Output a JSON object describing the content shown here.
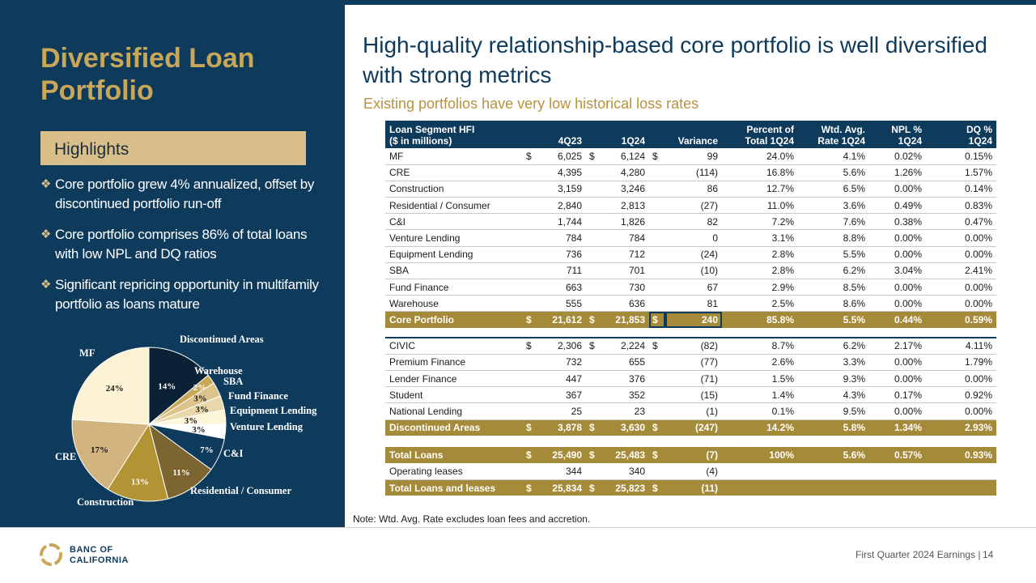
{
  "left": {
    "title": "Diversified Loan Portfolio",
    "highlights_label": "Highlights",
    "bullets": [
      "Core portfolio grew 4% annualized, offset by discontinued portfolio run-off",
      "Core portfolio comprises 86% of total loans with low NPL and DQ ratios",
      "Significant repricing opportunity in multifamily portfolio as loans mature"
    ]
  },
  "header": {
    "title": "High-quality relationship-based core portfolio is well diversified with strong metrics",
    "subtitle": "Existing portfolios have very low historical loss rates"
  },
  "table": {
    "headers": {
      "segment_line1": "Loan Segment HFI",
      "segment_line2": "($ in millions)",
      "q4_23": "4Q23",
      "q1_24": "1Q24",
      "variance": "Variance",
      "pct_line1": "Percent of",
      "pct_line2": "Total 1Q24",
      "rate_line1": "Wtd. Avg.",
      "rate_line2": "Rate 1Q24",
      "npl_line1": "NPL %",
      "npl_line2": "1Q24",
      "dq_line1": "DQ %",
      "dq_line2": "1Q24"
    },
    "core_rows": [
      {
        "name": "MF",
        "cur": "$",
        "q4": "6,025",
        "q1": "6,124",
        "var": "99",
        "pct": "24.0%",
        "rate": "4.1%",
        "npl": "0.02%",
        "dq": "0.15%"
      },
      {
        "name": "CRE",
        "cur": "",
        "q4": "4,395",
        "q1": "4,280",
        "var": "(114)",
        "pct": "16.8%",
        "rate": "5.6%",
        "npl": "1.26%",
        "dq": "1.57%"
      },
      {
        "name": "Construction",
        "cur": "",
        "q4": "3,159",
        "q1": "3,246",
        "var": "86",
        "pct": "12.7%",
        "rate": "6.5%",
        "npl": "0.00%",
        "dq": "0.14%"
      },
      {
        "name": "Residential / Consumer",
        "cur": "",
        "q4": "2,840",
        "q1": "2,813",
        "var": "(27)",
        "pct": "11.0%",
        "rate": "3.6%",
        "npl": "0.49%",
        "dq": "0.83%"
      },
      {
        "name": "C&I",
        "cur": "",
        "q4": "1,744",
        "q1": "1,826",
        "var": "82",
        "pct": "7.2%",
        "rate": "7.6%",
        "npl": "0.38%",
        "dq": "0.47%"
      },
      {
        "name": "Venture Lending",
        "cur": "",
        "q4": "784",
        "q1": "784",
        "var": "0",
        "pct": "3.1%",
        "rate": "8.8%",
        "npl": "0.00%",
        "dq": "0.00%"
      },
      {
        "name": "Equipment Lending",
        "cur": "",
        "q4": "736",
        "q1": "712",
        "var": "(24)",
        "pct": "2.8%",
        "rate": "5.5%",
        "npl": "0.00%",
        "dq": "0.00%"
      },
      {
        "name": "SBA",
        "cur": "",
        "q4": "711",
        "q1": "701",
        "var": "(10)",
        "pct": "2.8%",
        "rate": "6.2%",
        "npl": "3.04%",
        "dq": "2.41%"
      },
      {
        "name": "Fund Finance",
        "cur": "",
        "q4": "663",
        "q1": "730",
        "var": "67",
        "pct": "2.9%",
        "rate": "8.5%",
        "npl": "0.00%",
        "dq": "0.00%"
      },
      {
        "name": "Warehouse",
        "cur": "",
        "q4": "555",
        "q1": "636",
        "var": "81",
        "pct": "2.5%",
        "rate": "8.6%",
        "npl": "0.00%",
        "dq": "0.00%"
      }
    ],
    "core_total": {
      "name": "Core Portfolio",
      "cur": "$",
      "q4": "21,612",
      "q1": "21,853",
      "var": "240",
      "pct": "85.8%",
      "rate": "5.5%",
      "npl": "0.44%",
      "dq": "0.59%"
    },
    "disc_rows": [
      {
        "name": "CIVIC",
        "cur": "$",
        "q4": "2,306",
        "q1": "2,224",
        "var": "(82)",
        "pct": "8.7%",
        "rate": "6.2%",
        "npl": "2.17%",
        "dq": "4.11%"
      },
      {
        "name": "Premium Finance",
        "cur": "",
        "q4": "732",
        "q1": "655",
        "var": "(77)",
        "pct": "2.6%",
        "rate": "3.3%",
        "npl": "0.00%",
        "dq": "1.79%"
      },
      {
        "name": "Lender Finance",
        "cur": "",
        "q4": "447",
        "q1": "376",
        "var": "(71)",
        "pct": "1.5%",
        "rate": "9.3%",
        "npl": "0.00%",
        "dq": "0.00%"
      },
      {
        "name": "Student",
        "cur": "",
        "q4": "367",
        "q1": "352",
        "var": "(15)",
        "pct": "1.4%",
        "rate": "4.3%",
        "npl": "0.17%",
        "dq": "0.92%"
      },
      {
        "name": "National Lending",
        "cur": "",
        "q4": "25",
        "q1": "23",
        "var": "(1)",
        "pct": "0.1%",
        "rate": "9.5%",
        "npl": "0.00%",
        "dq": "0.00%"
      }
    ],
    "disc_total": {
      "name": "Discontinued Areas",
      "cur": "$",
      "q4": "3,878",
      "q1": "3,630",
      "var": "(247)",
      "pct": "14.2%",
      "rate": "5.8%",
      "npl": "1.34%",
      "dq": "2.93%"
    },
    "total_loans": {
      "name": "Total Loans",
      "cur": "$",
      "q4": "25,490",
      "q1": "25,483",
      "var": "(7)",
      "pct": "100%",
      "rate": "5.6%",
      "npl": "0.57%",
      "dq": "0.93%"
    },
    "operating_leases": {
      "name": "Operating leases",
      "cur": "",
      "q4": "344",
      "q1": "340",
      "var": "(4)",
      "pct": "",
      "rate": "",
      "npl": "",
      "dq": ""
    },
    "total_loans_leases": {
      "name": "Total Loans and leases",
      "cur": "$",
      "q4": "25,834",
      "q1": "25,823",
      "var": "(11)",
      "pct": "",
      "rate": "",
      "npl": "",
      "dq": ""
    }
  },
  "note": "Note: Wtd. Avg. Rate excludes loan fees and accretion.",
  "footer": {
    "logo_line1": "BANC OF",
    "logo_line2": "CALIFORNIA",
    "text": "First Quarter 2024 Earnings |",
    "page": "14"
  },
  "colors": {
    "navy": "#0e3a5c",
    "gold": "#a58a39",
    "light_gold": "#d9c08a"
  },
  "chart_data": {
    "type": "pie",
    "title": "",
    "slices": [
      {
        "label": "Discontinued Areas",
        "value": 14,
        "display": "14%",
        "color": "#0b2136"
      },
      {
        "label": "Warehouse",
        "value": 2,
        "display": "2%",
        "color": "#c9a759"
      },
      {
        "label": "SBA",
        "value": 3,
        "display": "3%",
        "color": "#dcc48c"
      },
      {
        "label": "Fund Finance",
        "value": 3,
        "display": "3%",
        "color": "#e8d7a8"
      },
      {
        "label": "Equipment Lending",
        "value": 3,
        "display": "3%",
        "color": "#fdf5d8"
      },
      {
        "label": "Venture Lending",
        "value": 3,
        "display": "3%",
        "color": "#ffffff"
      },
      {
        "label": "C&I",
        "value": 7,
        "display": "7%",
        "color": "#0e3a5c"
      },
      {
        "label": "Residential / Consumer",
        "value": 11,
        "display": "11%",
        "color": "#7d6532"
      },
      {
        "label": "Construction",
        "value": 13,
        "display": "13%",
        "color": "#b39434"
      },
      {
        "label": "CRE",
        "value": 17,
        "display": "17%",
        "color": "#d2b47e"
      },
      {
        "label": "MF",
        "value": 24,
        "display": "24%",
        "color": "#fcf2d4"
      }
    ]
  }
}
